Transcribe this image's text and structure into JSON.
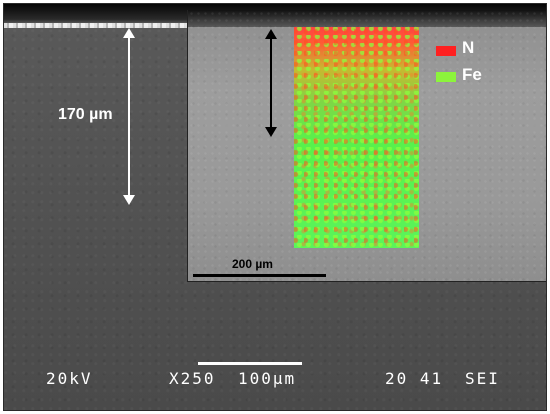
{
  "legend": {
    "items": [
      {
        "label": "N",
        "color": "#ff2020"
      },
      {
        "label": "Fe",
        "color": "#8cf43c"
      }
    ]
  },
  "annotations": {
    "depth_label": "170 µm",
    "inset_scale": "200 µm"
  },
  "sem_info": {
    "voltage": "20kV",
    "magnification": "X250",
    "scale": "100µm",
    "counter": "20 41",
    "detector": "SEI"
  },
  "colors": {
    "nitrogen": "#ff2020",
    "iron": "#8cf43c"
  }
}
